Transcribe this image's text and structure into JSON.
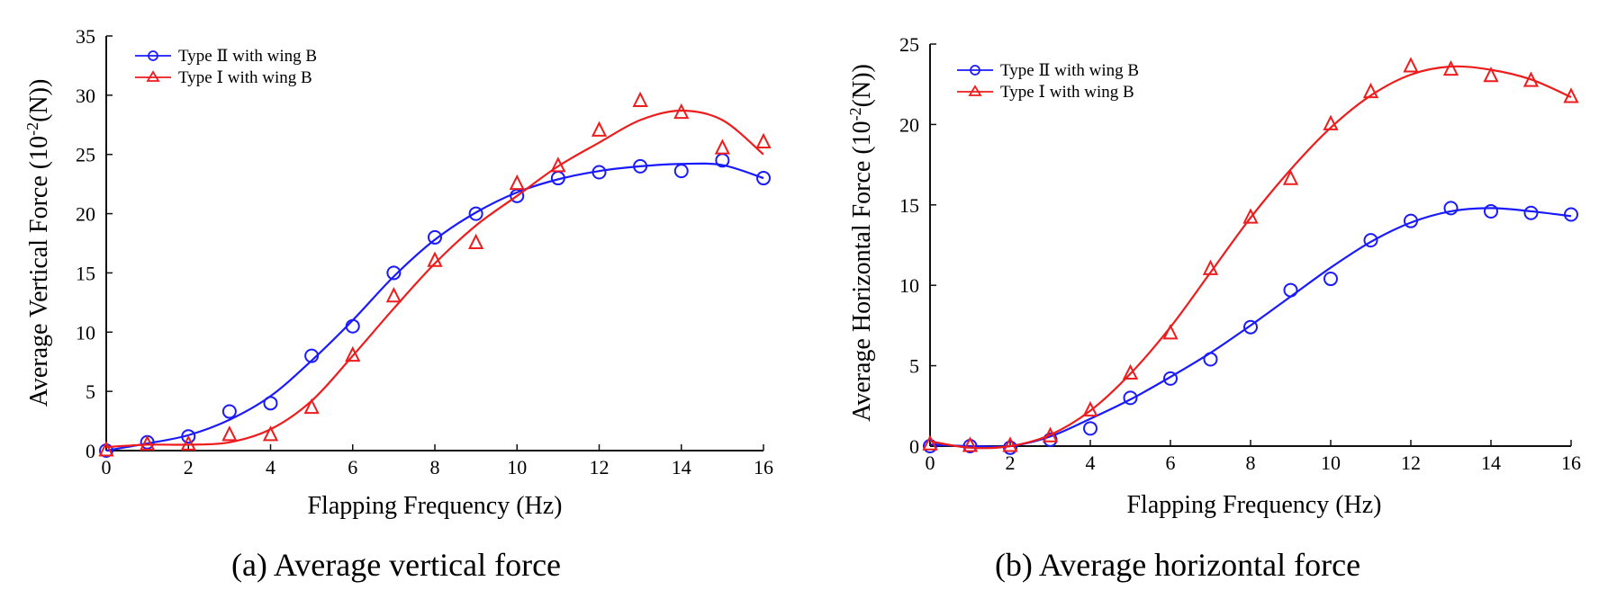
{
  "chart_data": [
    {
      "id": "a",
      "type": "line",
      "caption": "(a) Average vertical force",
      "xlabel": "Flapping Frequency (Hz)",
      "ylabel": "Average Vertical Force (10",
      "ylabel_sup": "-2",
      "ylabel_tail": "(N))",
      "xlim": [
        0,
        16
      ],
      "ylim": [
        0,
        35
      ],
      "xticks": [
        0,
        2,
        4,
        6,
        8,
        10,
        12,
        14,
        16
      ],
      "yticks": [
        0,
        5,
        10,
        15,
        20,
        25,
        30,
        35
      ],
      "grid": false,
      "legend_position": "top-left",
      "series": [
        {
          "name": "Type Ⅱ with wing B",
          "color": "#1a1aff",
          "marker": "circle",
          "x": [
            0,
            1,
            2,
            3,
            4,
            5,
            6,
            7,
            8,
            9,
            10,
            11,
            12,
            13,
            14,
            15,
            16
          ],
          "points": [
            0.0,
            0.7,
            1.2,
            3.3,
            4.0,
            8.0,
            10.5,
            15.0,
            18.0,
            20.0,
            21.5,
            23.0,
            23.5,
            24.0,
            23.6,
            24.5,
            23.0
          ],
          "fit": [
            0.0,
            0.6,
            1.3,
            2.6,
            4.6,
            7.6,
            11.0,
            14.7,
            17.8,
            20.1,
            21.8,
            22.9,
            23.6,
            24.0,
            24.2,
            24.1,
            23.0
          ]
        },
        {
          "name": "Type Ⅰ with wing B",
          "color": "#ee1c1c",
          "marker": "triangle",
          "x": [
            0,
            1,
            2,
            3,
            4,
            5,
            6,
            7,
            8,
            9,
            10,
            11,
            12,
            13,
            14,
            15,
            16
          ],
          "points": [
            0.0,
            0.5,
            0.5,
            1.3,
            1.3,
            3.6,
            8.0,
            13.0,
            16.0,
            17.5,
            22.5,
            24.0,
            27.0,
            29.5,
            28.5,
            25.5,
            26.0
          ],
          "fit": [
            0.3,
            0.5,
            0.5,
            0.7,
            1.8,
            4.2,
            8.0,
            12.0,
            15.8,
            19.0,
            21.5,
            24.0,
            26.0,
            27.9,
            28.7,
            27.9,
            25.0
          ]
        }
      ]
    },
    {
      "id": "b",
      "type": "line",
      "caption": "(b) Average horizontal force",
      "xlabel": "Flapping Frequency (Hz)",
      "ylabel": "Average Horizontal Force (10",
      "ylabel_sup": "-2",
      "ylabel_tail": "(N))",
      "xlim": [
        0,
        16
      ],
      "ylim": [
        0,
        25
      ],
      "xticks": [
        0,
        2,
        4,
        6,
        8,
        10,
        12,
        14,
        16
      ],
      "yticks": [
        0,
        5,
        10,
        15,
        20,
        25
      ],
      "grid": false,
      "legend_position": "top-left",
      "series": [
        {
          "name": "Type Ⅱ with wing B",
          "color": "#1a1aff",
          "marker": "circle",
          "x": [
            0,
            1,
            2,
            3,
            4,
            5,
            6,
            7,
            8,
            9,
            10,
            11,
            12,
            13,
            14,
            15,
            16
          ],
          "points": [
            0.0,
            0.0,
            -0.1,
            0.4,
            1.1,
            3.0,
            4.2,
            5.4,
            7.4,
            9.7,
            10.4,
            12.8,
            14.0,
            14.8,
            14.6,
            14.5,
            14.4
          ],
          "fit": [
            0.1,
            0.0,
            0.0,
            0.6,
            1.7,
            2.9,
            4.3,
            5.8,
            7.5,
            9.3,
            11.1,
            12.7,
            13.9,
            14.6,
            14.8,
            14.6,
            14.3
          ]
        },
        {
          "name": "Type Ⅰ with wing B",
          "color": "#ee1c1c",
          "marker": "triangle",
          "x": [
            0,
            1,
            2,
            3,
            4,
            5,
            6,
            7,
            8,
            9,
            10,
            11,
            12,
            13,
            14,
            15,
            16
          ],
          "points": [
            0.1,
            0.0,
            0.0,
            0.6,
            2.2,
            4.5,
            7.0,
            11.0,
            14.2,
            16.6,
            20.0,
            22.0,
            23.6,
            23.4,
            23.0,
            22.7,
            21.7
          ],
          "fit": [
            0.3,
            -0.1,
            0.0,
            0.7,
            2.2,
            4.5,
            7.4,
            10.8,
            14.2,
            17.2,
            19.8,
            21.8,
            23.1,
            23.6,
            23.4,
            22.8,
            21.7
          ]
        }
      ]
    }
  ]
}
